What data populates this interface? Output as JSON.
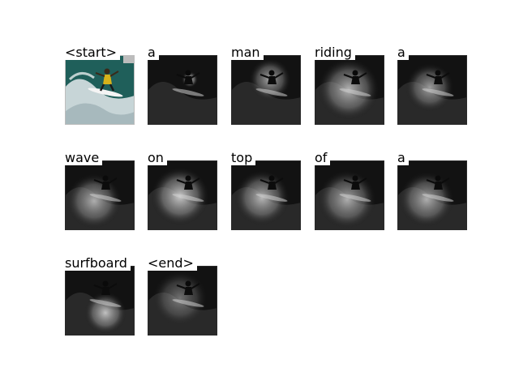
{
  "caption_tokens": [
    {
      "word": "<start>",
      "frame": "original"
    },
    {
      "word": "a",
      "frame": "attention"
    },
    {
      "word": "man",
      "frame": "attention"
    },
    {
      "word": "riding",
      "frame": "attention"
    },
    {
      "word": "a",
      "frame": "attention"
    },
    {
      "word": "wave",
      "frame": "attention"
    },
    {
      "word": "on",
      "frame": "attention"
    },
    {
      "word": "top",
      "frame": "attention"
    },
    {
      "word": "of",
      "frame": "attention"
    },
    {
      "word": "a",
      "frame": "attention"
    },
    {
      "word": "surfboard",
      "frame": "attention"
    },
    {
      "word": "<end>",
      "frame": "attention"
    }
  ],
  "colors": {
    "background": "#ffffff",
    "text": "#000000",
    "ocean": "#1f5f5a",
    "wave_foam": "#d9e2e4",
    "surfer_shirt": "#d7b21a",
    "attention_dark": "#121212",
    "attention_light": "#e8e8e8"
  }
}
